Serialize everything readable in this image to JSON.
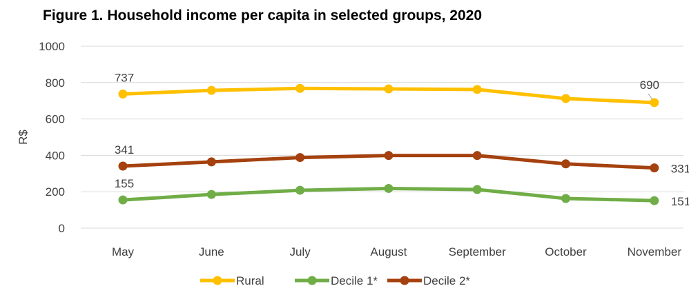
{
  "chart_data": {
    "type": "line",
    "title": "Figure 1. Household income per capita in selected groups, 2020",
    "ylabel": "R$",
    "xlabel": "",
    "ylim": [
      0,
      1000
    ],
    "yticks": [
      0,
      200,
      400,
      600,
      800,
      1000
    ],
    "categories": [
      "May",
      "June",
      "July",
      "August",
      "September",
      "October",
      "November"
    ],
    "grid": true,
    "legend_position": "bottom",
    "series": [
      {
        "name": "Rural",
        "color": "#FFC000",
        "values": [
          737,
          757,
          768,
          765,
          762,
          712,
          690
        ],
        "labels": [
          {
            "index": 0,
            "text": "737"
          },
          {
            "index": 6,
            "text": "690"
          }
        ]
      },
      {
        "name": "Decile 1*",
        "color": "#70AD47",
        "values": [
          155,
          185,
          208,
          218,
          212,
          163,
          151
        ],
        "labels": [
          {
            "index": 0,
            "text": "155"
          },
          {
            "index": 6,
            "text": "151"
          }
        ]
      },
      {
        "name": "Decile 2*",
        "color": "#A5410F",
        "values": [
          341,
          364,
          388,
          399,
          399,
          353,
          331
        ],
        "labels": [
          {
            "index": 0,
            "text": "341"
          },
          {
            "index": 6,
            "text": "331"
          }
        ]
      }
    ]
  }
}
